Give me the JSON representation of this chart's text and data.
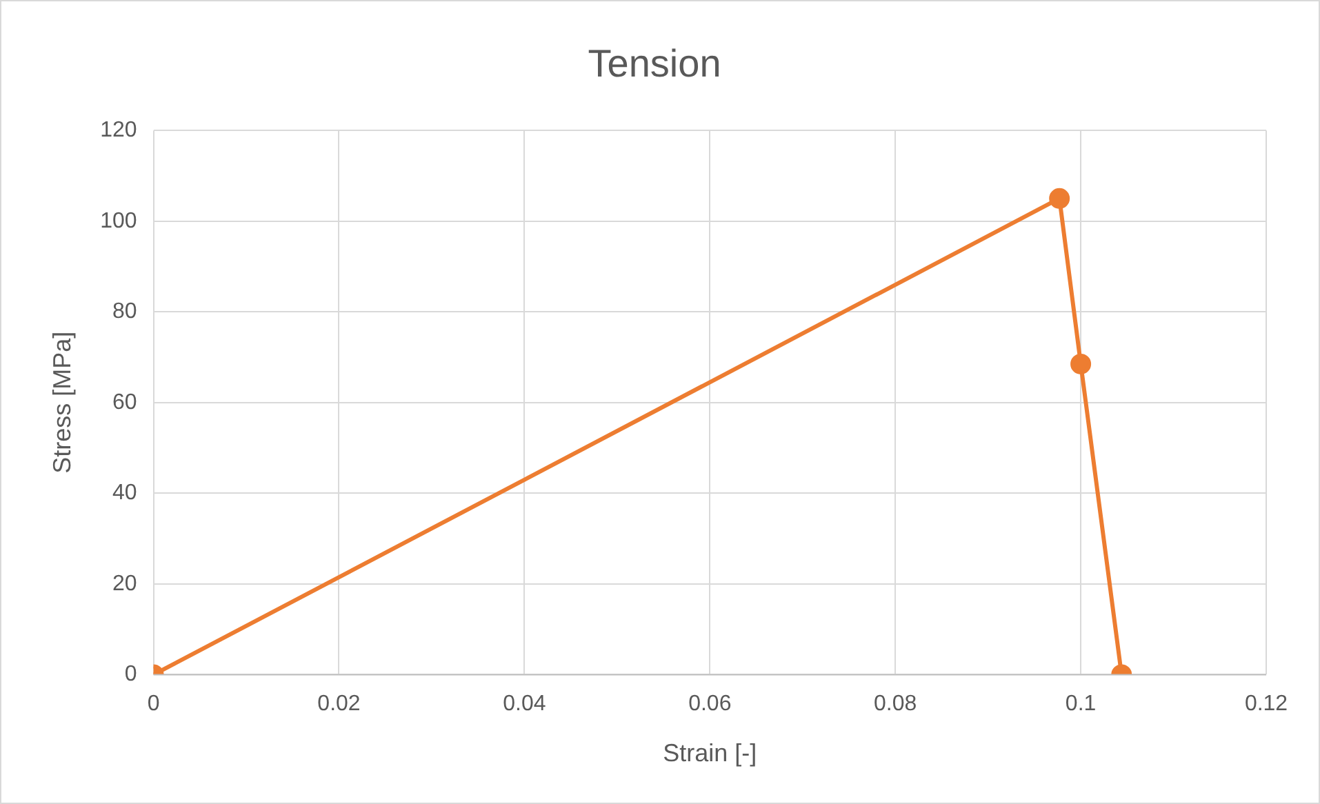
{
  "chart_data": {
    "type": "line",
    "title": "Tension",
    "xlabel": "Strain [-]",
    "ylabel": "Stress [MPa]",
    "x": [
      0,
      0.0977,
      0.1,
      0.1044
    ],
    "series": [
      {
        "color": "#ed7d31",
        "values": [
          0,
          105,
          68.5,
          0
        ]
      }
    ],
    "xlim": [
      0,
      0.12
    ],
    "xticks": [
      0,
      0.02,
      0.04,
      0.06,
      0.08,
      0.1,
      0.12
    ],
    "ylim": [
      0,
      120
    ],
    "yticks": [
      0,
      20,
      40,
      60,
      80,
      100,
      120
    ],
    "grid": true,
    "legend": false,
    "marker": "circle",
    "line_style": "solid"
  }
}
